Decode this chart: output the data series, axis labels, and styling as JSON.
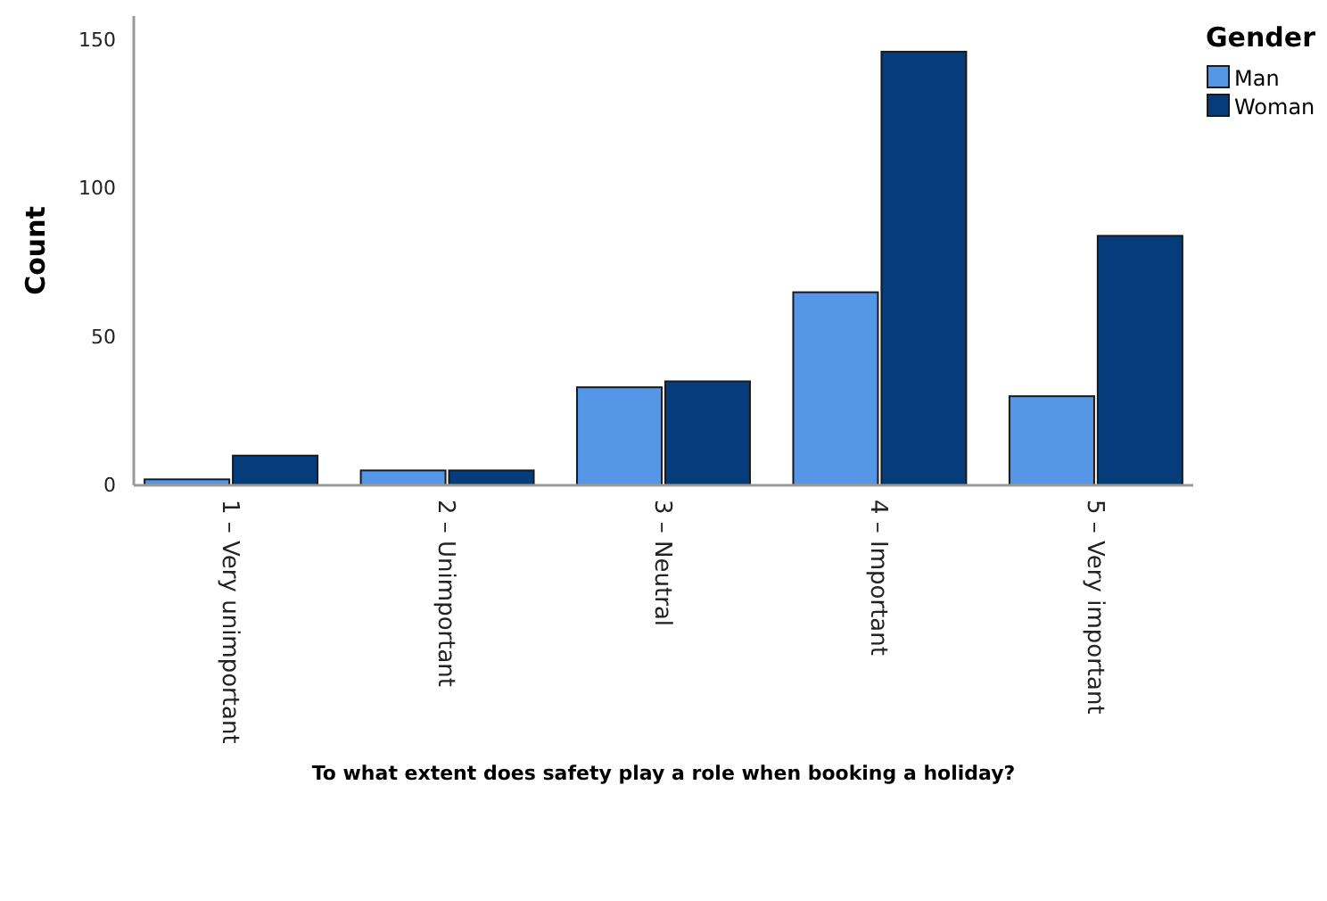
{
  "chart_data": {
    "type": "bar",
    "xlabel": "To what extent does safety play a role when booking a holiday?",
    "ylabel": "Count",
    "legend_title": "Gender",
    "legend": "top right",
    "categories": [
      "1 – Very unimportant",
      "2 – Unimportant",
      "3 – Neutral",
      "4 – Important",
      "5 – Very important"
    ],
    "series": [
      {
        "name": "Man",
        "color": "#5596e6",
        "values": [
          2,
          5,
          33,
          65,
          30
        ]
      },
      {
        "name": "Woman",
        "color": "#053c7b",
        "values": [
          10,
          5,
          35,
          146,
          84
        ]
      }
    ],
    "ylim": [
      0,
      158
    ],
    "yticks": [
      0,
      50,
      100,
      150
    ],
    "grid": false
  }
}
